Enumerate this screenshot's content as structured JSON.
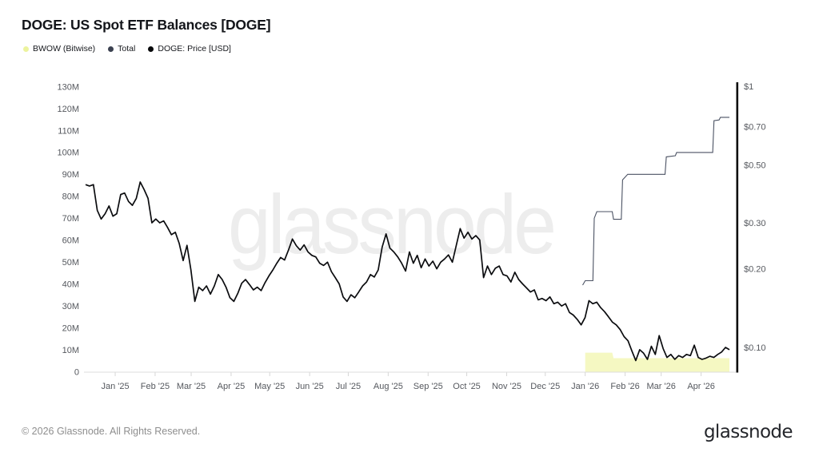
{
  "header": {
    "title": "DOGE: US Spot ETF Balances [DOGE]"
  },
  "legend": [
    {
      "id": "bwow",
      "label": "BWOW (Bitwise)",
      "color": "#ecf39d"
    },
    {
      "id": "total",
      "label": "Total",
      "color": "#3b4150"
    },
    {
      "id": "price",
      "label": "DOGE: Price [USD]",
      "color": "#07080a"
    }
  ],
  "watermark": "glassnode",
  "footer": {
    "copyright": "© 2026 Glassnode. All Rights Reserved.",
    "logo": "glassnode"
  },
  "chart_data": {
    "type": "line",
    "title": "DOGE: US Spot ETF Balances [DOGE]",
    "x_range": {
      "start": "2024-12-09",
      "end": "2026-04-23"
    },
    "x_ticks": [
      {
        "date": "2025-01-01",
        "label": "Jan '25"
      },
      {
        "date": "2025-02-01",
        "label": "Feb '25"
      },
      {
        "date": "2025-03-01",
        "label": "Mar '25"
      },
      {
        "date": "2025-04-01",
        "label": "Apr '25"
      },
      {
        "date": "2025-05-01",
        "label": "May '25"
      },
      {
        "date": "2025-06-01",
        "label": "Jun '25"
      },
      {
        "date": "2025-07-01",
        "label": "Jul '25"
      },
      {
        "date": "2025-08-01",
        "label": "Aug '25"
      },
      {
        "date": "2025-09-01",
        "label": "Sep '25"
      },
      {
        "date": "2025-10-01",
        "label": "Oct '25"
      },
      {
        "date": "2025-11-01",
        "label": "Nov '25"
      },
      {
        "date": "2025-12-01",
        "label": "Dec '25"
      },
      {
        "date": "2026-01-01",
        "label": "Jan '26"
      },
      {
        "date": "2026-02-01",
        "label": "Feb '26"
      },
      {
        "date": "2026-03-01",
        "label": "Mar '26"
      },
      {
        "date": "2026-04-01",
        "label": "Apr '26"
      }
    ],
    "left_axis": {
      "unit": "DOGE (millions)",
      "range": [
        0,
        130
      ],
      "ticks": [
        [
          0,
          "0"
        ],
        [
          10,
          "10M"
        ],
        [
          20,
          "20M"
        ],
        [
          30,
          "30M"
        ],
        [
          40,
          "40M"
        ],
        [
          50,
          "50M"
        ],
        [
          60,
          "60M"
        ],
        [
          70,
          "70M"
        ],
        [
          80,
          "80M"
        ],
        [
          90,
          "90M"
        ],
        [
          100,
          "100M"
        ],
        [
          110,
          "110M"
        ],
        [
          120,
          "120M"
        ],
        [
          130,
          "130M"
        ]
      ]
    },
    "right_axis": {
      "unit": "USD",
      "scale": "log",
      "ticks": [
        [
          1,
          "$1"
        ],
        [
          0.7,
          "$0.70"
        ],
        [
          0.5,
          "$0.50"
        ],
        [
          0.3,
          "$0.30"
        ],
        [
          0.2,
          "$0.20"
        ],
        [
          0.1,
          "$0.10"
        ]
      ]
    },
    "series": [
      {
        "name": "BWOW (Bitwise)",
        "render": "step-area",
        "axis": "left",
        "fill": "#f5f8c2",
        "points": [
          [
            "2026-01-01",
            8.7
          ],
          [
            "2026-01-22",
            8.7
          ],
          [
            "2026-01-23",
            6.2
          ],
          [
            "2026-04-23",
            6.2
          ]
        ]
      },
      {
        "name": "Total",
        "render": "step-line",
        "axis": "left",
        "color": "#4b5263",
        "points": [
          [
            "2025-12-30",
            39.5
          ],
          [
            "2026-01-01",
            41.5
          ],
          [
            "2026-01-07",
            41.5
          ],
          [
            "2026-01-08",
            70
          ],
          [
            "2026-01-10",
            73
          ],
          [
            "2026-01-22",
            73
          ],
          [
            "2026-01-23",
            69.5
          ],
          [
            "2026-01-29",
            69.5
          ],
          [
            "2026-01-30",
            87.5
          ],
          [
            "2026-02-03",
            90
          ],
          [
            "2026-03-04",
            90
          ],
          [
            "2026-03-05",
            98
          ],
          [
            "2026-03-12",
            98.5
          ],
          [
            "2026-03-13",
            100
          ],
          [
            "2026-04-10",
            100
          ],
          [
            "2026-04-11",
            114.5
          ],
          [
            "2026-04-15",
            114.8
          ],
          [
            "2026-04-16",
            116
          ],
          [
            "2026-04-23",
            116
          ]
        ]
      },
      {
        "name": "DOGE: Price [USD]",
        "render": "line",
        "axis": "right",
        "color": "#0b0c0f",
        "sampling": "evenly spaced between x_range.start and x_range.end",
        "values": [
          0.42,
          0.415,
          0.42,
          0.335,
          0.31,
          0.325,
          0.348,
          0.318,
          0.325,
          0.385,
          0.39,
          0.362,
          0.35,
          0.372,
          0.43,
          0.402,
          0.372,
          0.3,
          0.31,
          0.3,
          0.305,
          0.288,
          0.27,
          0.276,
          0.25,
          0.215,
          0.246,
          0.198,
          0.15,
          0.17,
          0.165,
          0.172,
          0.16,
          0.172,
          0.19,
          0.182,
          0.17,
          0.155,
          0.15,
          0.161,
          0.176,
          0.182,
          0.174,
          0.166,
          0.17,
          0.165,
          0.177,
          0.188,
          0.198,
          0.21,
          0.221,
          0.216,
          0.236,
          0.26,
          0.245,
          0.236,
          0.247,
          0.232,
          0.225,
          0.222,
          0.21,
          0.206,
          0.212,
          0.195,
          0.185,
          0.175,
          0.156,
          0.15,
          0.159,
          0.155,
          0.163,
          0.172,
          0.178,
          0.19,
          0.186,
          0.198,
          0.242,
          0.272,
          0.24,
          0.232,
          0.222,
          0.21,
          0.196,
          0.232,
          0.21,
          0.225,
          0.202,
          0.218,
          0.205,
          0.214,
          0.2,
          0.212,
          0.218,
          0.226,
          0.212,
          0.246,
          0.285,
          0.262,
          0.276,
          0.26,
          0.268,
          0.258,
          0.185,
          0.205,
          0.19,
          0.201,
          0.205,
          0.19,
          0.188,
          0.178,
          0.194,
          0.182,
          0.175,
          0.169,
          0.163,
          0.166,
          0.152,
          0.154,
          0.151,
          0.156,
          0.147,
          0.149,
          0.144,
          0.147,
          0.136,
          0.133,
          0.128,
          0.122,
          0.13,
          0.151,
          0.147,
          0.149,
          0.142,
          0.137,
          0.131,
          0.125,
          0.122,
          0.117,
          0.11,
          0.106,
          0.097,
          0.089,
          0.098,
          0.095,
          0.09,
          0.101,
          0.094,
          0.111,
          0.099,
          0.0915,
          0.094,
          0.09,
          0.093,
          0.0915,
          0.094,
          0.093,
          0.102,
          0.0915,
          0.09,
          0.091,
          0.0925,
          0.0915,
          0.094,
          0.096,
          0.1,
          0.098
        ]
      }
    ]
  }
}
